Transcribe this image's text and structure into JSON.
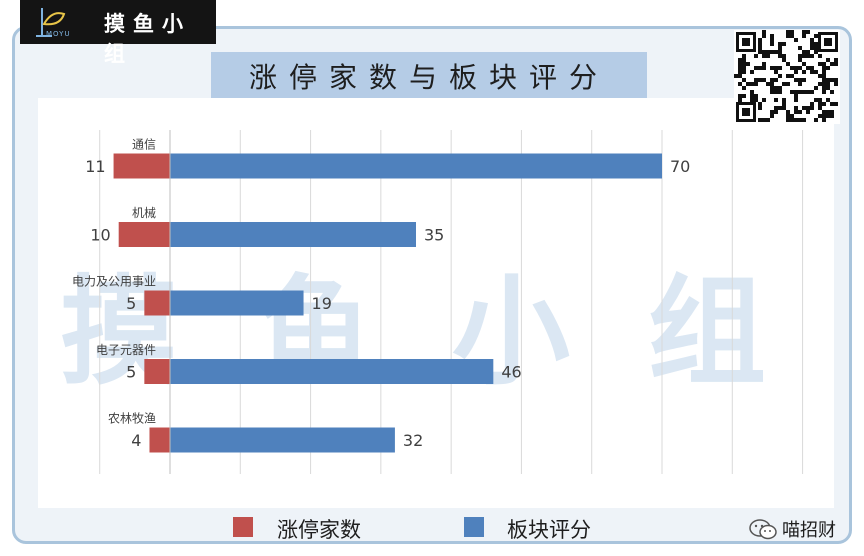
{
  "logo": {
    "text": "摸鱼小组",
    "sub": "MOYU"
  },
  "watermark": "摸鱼小组",
  "brand": {
    "name": "喵招财"
  },
  "icons": {
    "logo": "fish-line-icon",
    "qr": "qr-code-icon",
    "brand": "wechat-icon"
  },
  "colors": {
    "limit_up": "#c0504d",
    "sector_score": "#4f81bd",
    "frame": "#a9c4dc",
    "title_band": "#b5cce6"
  },
  "chart_data": {
    "type": "bar",
    "orientation": "horizontal-diverging",
    "title": "涨停家数与板块评分",
    "categories": [
      "通信",
      "机械",
      "电力及公用事业",
      "电子元器件",
      "农林牧渔"
    ],
    "series": [
      {
        "name": "涨停家数",
        "values": [
          11,
          10,
          5,
          5,
          4
        ],
        "direction": "left"
      },
      {
        "name": "板块评分",
        "values": [
          70,
          35,
          19,
          46,
          32
        ],
        "direction": "right"
      }
    ],
    "xlim": [
      -20,
      90
    ],
    "grid": true,
    "legend_position": "bottom"
  }
}
